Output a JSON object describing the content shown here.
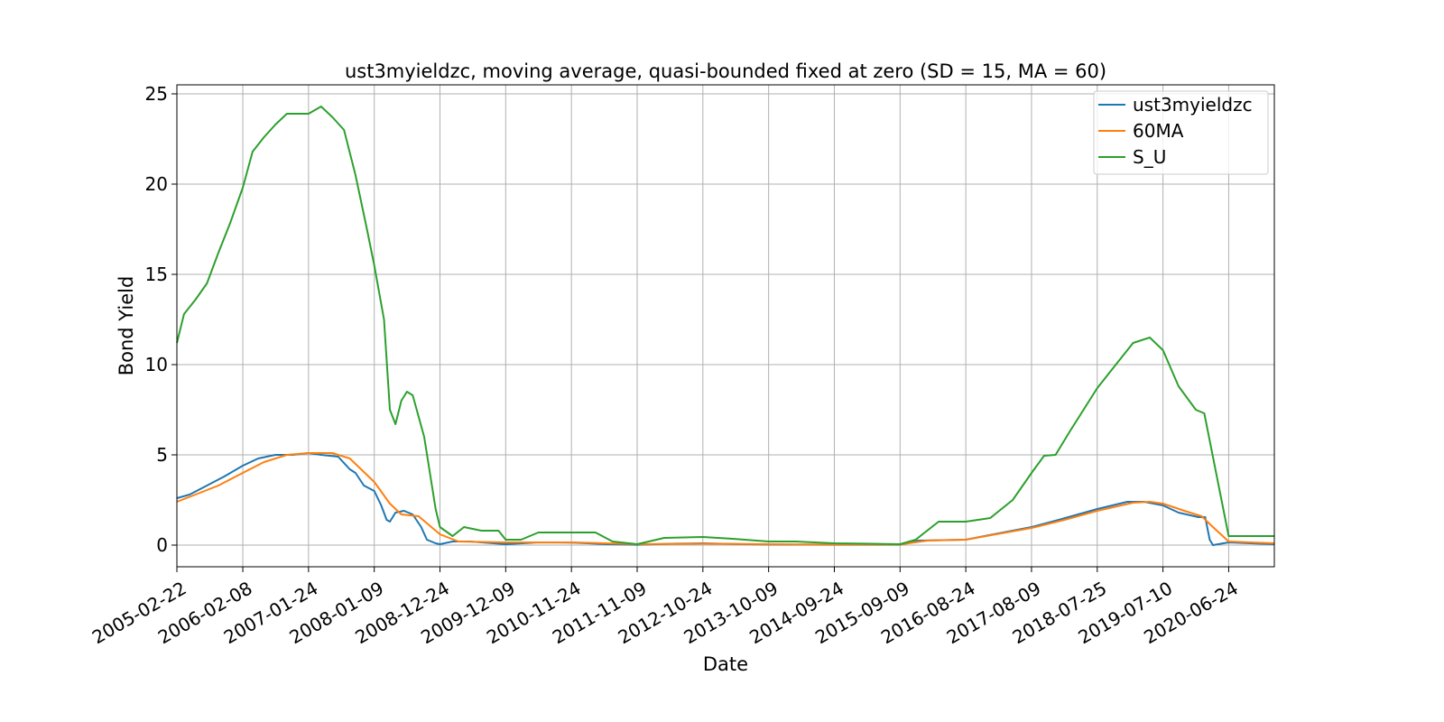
{
  "chart_data": {
    "type": "line",
    "title": "ust3myieldzc, moving average, quasi-bounded fixed at zero (SD = 15, MA = 60)",
    "xlabel": "Date",
    "ylabel": "Bond Yield",
    "x_ticks": [
      "2005-02-22",
      "2006-02-08",
      "2007-01-24",
      "2008-01-09",
      "2008-12-24",
      "2009-12-09",
      "2010-11-24",
      "2011-11-09",
      "2012-10-24",
      "2013-10-09",
      "2014-09-24",
      "2015-09-09",
      "2016-08-24",
      "2017-08-09",
      "2018-07-25",
      "2019-07-10",
      "2020-06-24"
    ],
    "xlim": [
      "2005-02-22",
      "2021-02-22"
    ],
    "ylim": [
      -1.2,
      25.5
    ],
    "y_ticks": [
      0,
      5,
      10,
      15,
      20,
      25
    ],
    "y_tick_labels": [
      "0",
      "5",
      "10",
      "15",
      "20",
      "25"
    ],
    "grid": true,
    "legend_position": "upper-right",
    "series": [
      {
        "name": "ust3myieldzc",
        "color": "#1f77b4",
        "points": [
          [
            "2005-02-22",
            2.6
          ],
          [
            "2005-05-01",
            2.8
          ],
          [
            "2005-08-01",
            3.3
          ],
          [
            "2005-11-01",
            3.8
          ],
          [
            "2006-02-08",
            4.4
          ],
          [
            "2006-05-01",
            4.8
          ],
          [
            "2006-08-01",
            5.0
          ],
          [
            "2006-11-01",
            5.0
          ],
          [
            "2007-01-24",
            5.1
          ],
          [
            "2007-04-01",
            5.0
          ],
          [
            "2007-07-01",
            4.9
          ],
          [
            "2007-09-01",
            4.2
          ],
          [
            "2007-10-01",
            4.0
          ],
          [
            "2007-11-15",
            3.3
          ],
          [
            "2008-01-09",
            3.0
          ],
          [
            "2008-02-15",
            2.2
          ],
          [
            "2008-03-15",
            1.4
          ],
          [
            "2008-04-01",
            1.3
          ],
          [
            "2008-05-01",
            1.8
          ],
          [
            "2008-06-15",
            1.9
          ],
          [
            "2008-08-01",
            1.7
          ],
          [
            "2008-09-15",
            1.0
          ],
          [
            "2008-10-15",
            0.3
          ],
          [
            "2008-12-01",
            0.1
          ],
          [
            "2008-12-24",
            0.05
          ],
          [
            "2009-03-01",
            0.2
          ],
          [
            "2009-06-01",
            0.2
          ],
          [
            "2009-12-09",
            0.05
          ],
          [
            "2010-06-01",
            0.15
          ],
          [
            "2010-11-24",
            0.14
          ],
          [
            "2011-06-01",
            0.05
          ],
          [
            "2011-11-09",
            0.02
          ],
          [
            "2012-06-01",
            0.08
          ],
          [
            "2012-10-24",
            0.1
          ],
          [
            "2013-06-01",
            0.05
          ],
          [
            "2013-10-09",
            0.03
          ],
          [
            "2014-09-24",
            0.02
          ],
          [
            "2015-09-09",
            0.02
          ],
          [
            "2015-12-15",
            0.25
          ],
          [
            "2016-08-24",
            0.3
          ],
          [
            "2016-12-01",
            0.5
          ],
          [
            "2017-08-09",
            1.0
          ],
          [
            "2018-01-01",
            1.4
          ],
          [
            "2018-07-25",
            2.0
          ],
          [
            "2019-01-01",
            2.4
          ],
          [
            "2019-04-01",
            2.4
          ],
          [
            "2019-07-10",
            2.2
          ],
          [
            "2019-10-01",
            1.8
          ],
          [
            "2020-01-15",
            1.55
          ],
          [
            "2020-02-20",
            1.55
          ],
          [
            "2020-03-15",
            0.3
          ],
          [
            "2020-04-01",
            0.0
          ],
          [
            "2020-06-24",
            0.15
          ],
          [
            "2021-02-22",
            0.05
          ]
        ]
      },
      {
        "name": "60MA",
        "color": "#ff7f0e",
        "points": [
          [
            "2005-02-22",
            2.4
          ],
          [
            "2005-06-01",
            2.8
          ],
          [
            "2005-10-01",
            3.3
          ],
          [
            "2006-02-08",
            4.0
          ],
          [
            "2006-06-01",
            4.6
          ],
          [
            "2006-10-01",
            5.0
          ],
          [
            "2007-01-24",
            5.1
          ],
          [
            "2007-06-01",
            5.1
          ],
          [
            "2007-09-01",
            4.8
          ],
          [
            "2008-01-09",
            3.5
          ],
          [
            "2008-04-01",
            2.3
          ],
          [
            "2008-06-01",
            1.7
          ],
          [
            "2008-09-01",
            1.6
          ],
          [
            "2008-12-24",
            0.6
          ],
          [
            "2009-04-01",
            0.2
          ],
          [
            "2009-12-09",
            0.15
          ],
          [
            "2010-11-24",
            0.15
          ],
          [
            "2011-11-09",
            0.05
          ],
          [
            "2012-10-24",
            0.08
          ],
          [
            "2013-10-09",
            0.05
          ],
          [
            "2014-09-24",
            0.03
          ],
          [
            "2015-09-09",
            0.03
          ],
          [
            "2016-02-01",
            0.25
          ],
          [
            "2016-08-24",
            0.3
          ],
          [
            "2017-02-01",
            0.6
          ],
          [
            "2017-08-09",
            0.95
          ],
          [
            "2018-02-01",
            1.4
          ],
          [
            "2018-07-25",
            1.9
          ],
          [
            "2019-02-01",
            2.35
          ],
          [
            "2019-05-01",
            2.4
          ],
          [
            "2019-07-10",
            2.3
          ],
          [
            "2019-11-01",
            1.9
          ],
          [
            "2020-02-01",
            1.6
          ],
          [
            "2020-04-01",
            1.0
          ],
          [
            "2020-06-24",
            0.2
          ],
          [
            "2021-02-22",
            0.1
          ]
        ]
      },
      {
        "name": "S_U",
        "color": "#2ca02c",
        "points": [
          [
            "2005-02-22",
            11.2
          ],
          [
            "2005-04-01",
            12.8
          ],
          [
            "2005-06-01",
            13.6
          ],
          [
            "2005-08-01",
            14.5
          ],
          [
            "2005-10-01",
            16.2
          ],
          [
            "2005-12-01",
            17.8
          ],
          [
            "2006-02-08",
            19.8
          ],
          [
            "2006-04-01",
            21.8
          ],
          [
            "2006-06-01",
            22.6
          ],
          [
            "2006-08-01",
            23.3
          ],
          [
            "2006-10-01",
            23.9
          ],
          [
            "2006-12-01",
            23.9
          ],
          [
            "2007-01-24",
            23.9
          ],
          [
            "2007-04-01",
            24.3
          ],
          [
            "2007-06-01",
            23.7
          ],
          [
            "2007-08-01",
            23.0
          ],
          [
            "2007-10-01",
            20.5
          ],
          [
            "2007-12-01",
            17.5
          ],
          [
            "2008-01-09",
            15.5
          ],
          [
            "2008-03-01",
            12.5
          ],
          [
            "2008-04-01",
            7.5
          ],
          [
            "2008-05-01",
            6.7
          ],
          [
            "2008-06-01",
            8.0
          ],
          [
            "2008-07-01",
            8.5
          ],
          [
            "2008-08-01",
            8.3
          ],
          [
            "2008-10-01",
            6.0
          ],
          [
            "2008-12-01",
            2.0
          ],
          [
            "2008-12-24",
            1.0
          ],
          [
            "2009-03-01",
            0.5
          ],
          [
            "2009-05-01",
            1.0
          ],
          [
            "2009-08-01",
            0.8
          ],
          [
            "2009-11-01",
            0.8
          ],
          [
            "2009-12-09",
            0.3
          ],
          [
            "2010-03-01",
            0.3
          ],
          [
            "2010-06-01",
            0.7
          ],
          [
            "2010-11-24",
            0.7
          ],
          [
            "2011-04-01",
            0.7
          ],
          [
            "2011-07-01",
            0.2
          ],
          [
            "2011-11-09",
            0.05
          ],
          [
            "2012-04-01",
            0.4
          ],
          [
            "2012-10-24",
            0.45
          ],
          [
            "2013-04-01",
            0.35
          ],
          [
            "2013-10-09",
            0.2
          ],
          [
            "2014-03-01",
            0.2
          ],
          [
            "2014-09-24",
            0.1
          ],
          [
            "2015-03-01",
            0.08
          ],
          [
            "2015-09-09",
            0.05
          ],
          [
            "2015-12-01",
            0.3
          ],
          [
            "2016-04-01",
            1.3
          ],
          [
            "2016-08-24",
            1.3
          ],
          [
            "2017-01-01",
            1.5
          ],
          [
            "2017-05-01",
            2.5
          ],
          [
            "2017-08-09",
            4.0
          ],
          [
            "2017-10-15",
            4.95
          ],
          [
            "2017-12-15",
            5.0
          ],
          [
            "2018-03-01",
            6.3
          ],
          [
            "2018-07-25",
            8.7
          ],
          [
            "2018-11-01",
            10.0
          ],
          [
            "2019-02-01",
            11.2
          ],
          [
            "2019-05-01",
            11.5
          ],
          [
            "2019-07-10",
            10.8
          ],
          [
            "2019-10-01",
            8.8
          ],
          [
            "2020-01-01",
            7.5
          ],
          [
            "2020-02-15",
            7.3
          ],
          [
            "2020-06-24",
            0.5
          ],
          [
            "2021-02-22",
            0.5
          ]
        ]
      }
    ]
  }
}
